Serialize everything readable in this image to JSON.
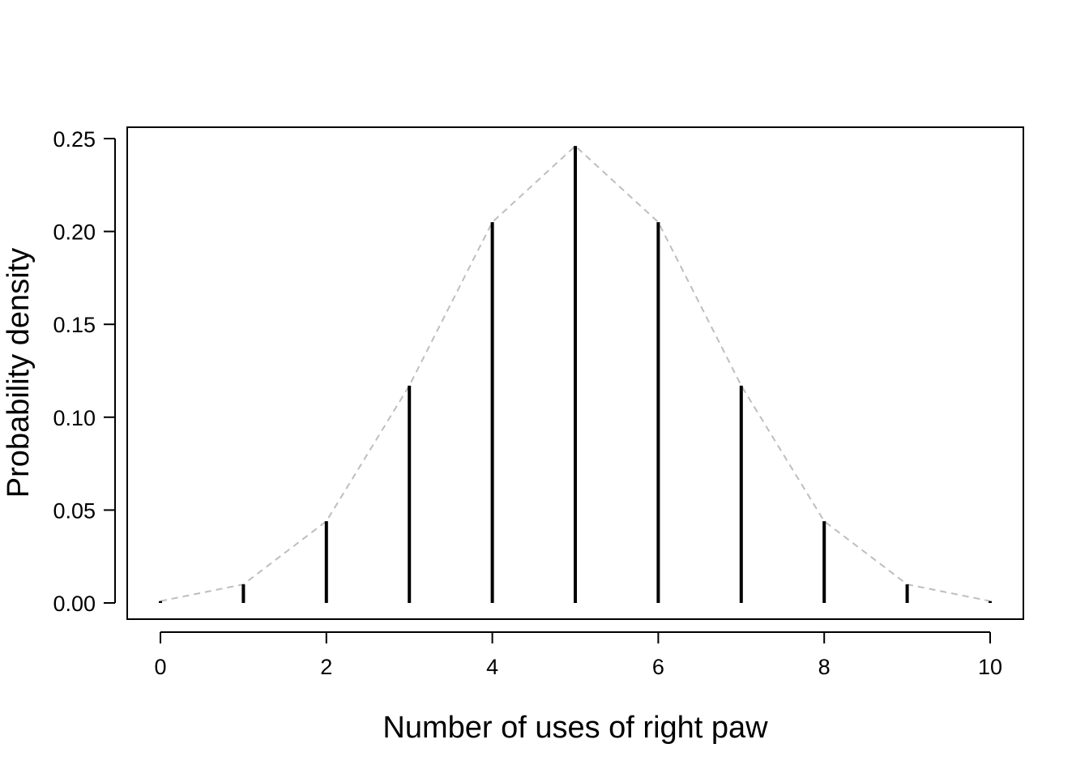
{
  "chart_data": {
    "type": "bar",
    "xlabel": "Number of uses of right paw",
    "ylabel": "Probability density",
    "x": [
      0,
      1,
      2,
      3,
      4,
      5,
      6,
      7,
      8,
      9,
      10
    ],
    "values": [
      0.001,
      0.01,
      0.044,
      0.117,
      0.205,
      0.246,
      0.205,
      0.117,
      0.044,
      0.01,
      0.001
    ],
    "xlim": [
      -0.4,
      10.4
    ],
    "ylim": [
      0,
      0.25
    ],
    "x_ticks": [
      "0",
      "2",
      "4",
      "6",
      "8",
      "10"
    ],
    "y_ticks": [
      "0.00",
      "0.05",
      "0.10",
      "0.15",
      "0.20",
      "0.25"
    ],
    "bar_color": "#000000",
    "connector_line": {
      "style": "dashed",
      "color": "#bebebe"
    },
    "grid": false,
    "legend": "none"
  }
}
